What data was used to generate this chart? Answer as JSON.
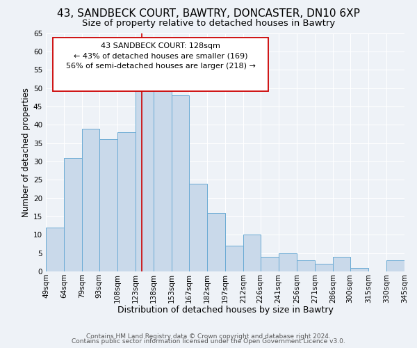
{
  "title1": "43, SANDBECK COURT, BAWTRY, DONCASTER, DN10 6XP",
  "title2": "Size of property relative to detached houses in Bawtry",
  "xlabel": "Distribution of detached houses by size in Bawtry",
  "ylabel": "Number of detached properties",
  "bin_labels": [
    "49sqm",
    "64sqm",
    "79sqm",
    "93sqm",
    "108sqm",
    "123sqm",
    "138sqm",
    "153sqm",
    "167sqm",
    "182sqm",
    "197sqm",
    "212sqm",
    "226sqm",
    "241sqm",
    "256sqm",
    "271sqm",
    "286sqm",
    "300sqm",
    "315sqm",
    "330sqm",
    "345sqm"
  ],
  "bar_values": [
    12,
    31,
    39,
    36,
    38,
    53,
    54,
    48,
    24,
    16,
    7,
    10,
    4,
    5,
    3,
    2,
    4,
    1,
    0,
    3
  ],
  "bin_edges": [
    49,
    64,
    79,
    93,
    108,
    123,
    138,
    153,
    167,
    182,
    197,
    212,
    226,
    241,
    256,
    271,
    286,
    300,
    315,
    330,
    345
  ],
  "bar_color": "#c9d9ea",
  "bar_edgecolor": "#6aaad4",
  "vline_x": 128,
  "vline_color": "#cc0000",
  "ylim": [
    0,
    65
  ],
  "yticks": [
    0,
    5,
    10,
    15,
    20,
    25,
    30,
    35,
    40,
    45,
    50,
    55,
    60,
    65
  ],
  "annotation_text_line1": "43 SANDBECK COURT: 128sqm",
  "annotation_text_line2": "← 43% of detached houses are smaller (169)",
  "annotation_text_line3": "56% of semi-detached houses are larger (218) →",
  "footer1": "Contains HM Land Registry data © Crown copyright and database right 2024.",
  "footer2": "Contains public sector information licensed under the Open Government Licence v3.0.",
  "background_color": "#eef2f7",
  "grid_color": "#ffffff",
  "title1_fontsize": 11,
  "title2_fontsize": 9.5,
  "xlabel_fontsize": 9,
  "ylabel_fontsize": 8.5,
  "tick_fontsize": 7.5,
  "footer_fontsize": 6.5,
  "ann_fontsize": 8
}
